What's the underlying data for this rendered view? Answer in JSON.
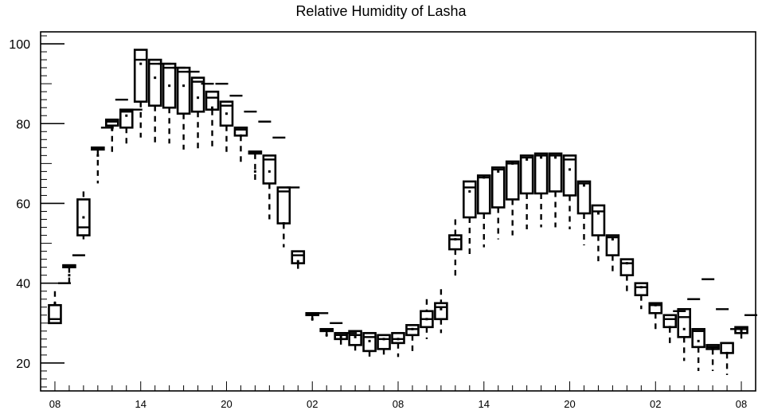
{
  "chart_data": {
    "type": "box",
    "title": "Relative Humidity of Lasha",
    "xlabel": "",
    "ylabel": "",
    "ylim": [
      13,
      103
    ],
    "yticks": [
      20,
      40,
      60,
      80,
      100
    ],
    "x_tick_labels": [
      "08",
      "14",
      "20",
      "02",
      "08",
      "14",
      "20",
      "02",
      "08"
    ],
    "x_tick_hours": [
      0,
      6,
      12,
      18,
      24,
      30,
      36,
      42,
      48
    ],
    "x_range_hours": [
      -1,
      49
    ],
    "grid": false,
    "boxes": [
      {
        "hour": 0,
        "min": null,
        "q1": 30,
        "median": 31,
        "q3": 34.5,
        "max": 38,
        "mean": 35,
        "extra": 40
      },
      {
        "hour": 1,
        "min": 39,
        "q1": 44,
        "median": 44.5,
        "q3": 44.5,
        "max": 44.5,
        "mean": 42,
        "extra": 47
      },
      {
        "hour": 2,
        "min": 51,
        "q1": 52,
        "median": 54,
        "q3": 61,
        "max": 63,
        "mean": 56.5,
        "extra": null
      },
      {
        "hour": 3,
        "min": 65,
        "q1": 73.5,
        "median": 74,
        "q3": 74,
        "max": 74,
        "mean": 72,
        "extra": 79
      },
      {
        "hour": 4,
        "min": 72,
        "q1": 79.5,
        "median": 80.5,
        "q3": 81,
        "max": 81,
        "mean": 78.5,
        "extra": 86
      },
      {
        "hour": 5,
        "min": 75,
        "q1": 79,
        "median": 83,
        "q3": 83.5,
        "max": 83.5,
        "mean": 82,
        "extra": 83.5
      },
      {
        "hour": 6,
        "min": 76.5,
        "q1": 85.5,
        "median": 96,
        "q3": 98.5,
        "max": 98.5,
        "mean": 95,
        "extra": null
      },
      {
        "hour": 7,
        "min": 75,
        "q1": 84.5,
        "median": 95,
        "q3": 96,
        "max": 96,
        "mean": 91.5,
        "extra": 95
      },
      {
        "hour": 8,
        "min": 75,
        "q1": 84,
        "median": 94,
        "q3": 95,
        "max": 95,
        "mean": 89.5,
        "extra": 94
      },
      {
        "hour": 9,
        "min": 73.5,
        "q1": 82.5,
        "median": 93,
        "q3": 94,
        "max": 94,
        "mean": 89.5,
        "extra": 93
      },
      {
        "hour": 10,
        "min": 73.5,
        "q1": 83,
        "median": 90.5,
        "q3": 91.5,
        "max": 91.5,
        "mean": 86.5,
        "extra": 90
      },
      {
        "hour": 11,
        "min": 73.5,
        "q1": 83.5,
        "median": 86.5,
        "q3": 88,
        "max": 88,
        "mean": 84,
        "extra": 90
      },
      {
        "hour": 12,
        "min": 72,
        "q1": 79.5,
        "median": 84.5,
        "q3": 85.5,
        "max": 85.5,
        "mean": 82.5,
        "extra": 87
      },
      {
        "hour": 13,
        "min": 70,
        "q1": 77,
        "median": 78.5,
        "q3": 79,
        "max": 79,
        "mean": 77,
        "extra": 83
      },
      {
        "hour": 14,
        "min": 65.5,
        "q1": 72.5,
        "median": 73,
        "q3": 73,
        "max": 73,
        "mean": 68,
        "extra": 80.5
      },
      {
        "hour": 15,
        "min": 56,
        "q1": 65,
        "median": 71,
        "q3": 72,
        "max": 72,
        "mean": 68,
        "extra": 76.5
      },
      {
        "hour": 16,
        "min": 49,
        "q1": 55,
        "median": 63,
        "q3": 64,
        "max": 64,
        "mean": 55,
        "extra": 64
      },
      {
        "hour": 17,
        "min": 42.5,
        "q1": 45,
        "median": 47,
        "q3": 48,
        "max": 48,
        "mean": 45.5,
        "extra": null
      },
      {
        "hour": 18,
        "min": 30,
        "q1": 32,
        "median": 32,
        "q3": 32.5,
        "max": 32.5,
        "mean": 31,
        "extra": 32.5
      },
      {
        "hour": 19,
        "min": 25.5,
        "q1": 28,
        "median": 28.5,
        "q3": 28.5,
        "max": 28.5,
        "mean": 27,
        "extra": 30
      },
      {
        "hour": 20,
        "min": 24,
        "q1": 26,
        "median": 27,
        "q3": 27.5,
        "max": 27.5,
        "mean": 26.5,
        "extra": 27.5
      },
      {
        "hour": 21,
        "min": 22,
        "q1": 24.5,
        "median": 27,
        "q3": 28,
        "max": 28,
        "mean": 26.5,
        "extra": null
      },
      {
        "hour": 22,
        "min": 20.5,
        "q1": 23,
        "median": 26.5,
        "q3": 27.5,
        "max": 27.5,
        "mean": 25.5,
        "extra": null
      },
      {
        "hour": 23,
        "min": 21,
        "q1": 23.5,
        "median": 26,
        "q3": 27,
        "max": 27,
        "mean": 26,
        "extra": null
      },
      {
        "hour": 24,
        "min": 21.5,
        "q1": 25,
        "median": 26,
        "q3": 27.5,
        "max": 27.5,
        "mean": 26,
        "extra": null
      },
      {
        "hour": 25,
        "min": 22.5,
        "q1": 27,
        "median": 28.5,
        "q3": 29.5,
        "max": 29.5,
        "mean": 28.5,
        "extra": null
      },
      {
        "hour": 26,
        "min": 26,
        "q1": 29,
        "median": 31,
        "q3": 33,
        "max": 36,
        "mean": 31,
        "extra": null
      },
      {
        "hour": 27,
        "min": 27.5,
        "q1": 31,
        "median": 34,
        "q3": 35,
        "max": 38.5,
        "mean": 33.5,
        "extra": null
      },
      {
        "hour": 28,
        "min": 41.5,
        "q1": 48.5,
        "median": 51,
        "q3": 52,
        "max": 56,
        "mean": 51,
        "extra": null
      },
      {
        "hour": 29,
        "min": 47,
        "q1": 56.5,
        "median": 64,
        "q3": 65.5,
        "max": 65.5,
        "mean": 63,
        "extra": null
      },
      {
        "hour": 30,
        "min": 49,
        "q1": 57.5,
        "median": 66.5,
        "q3": 67,
        "max": 67,
        "mean": 66.5,
        "extra": null
      },
      {
        "hour": 31,
        "min": 51,
        "q1": 59,
        "median": 68.5,
        "q3": 69,
        "max": 69,
        "mean": 68,
        "extra": null
      },
      {
        "hour": 32,
        "min": 52,
        "q1": 61,
        "median": 70,
        "q3": 70.5,
        "max": 70.5,
        "mean": 70,
        "extra": null
      },
      {
        "hour": 33,
        "min": 53.5,
        "q1": 62.5,
        "median": 71.5,
        "q3": 72,
        "max": 72,
        "mean": 71,
        "extra": null
      },
      {
        "hour": 34,
        "min": 54,
        "q1": 62.5,
        "median": 72,
        "q3": 72.5,
        "max": 72.5,
        "mean": 71.5,
        "extra": null
      },
      {
        "hour": 35,
        "min": 54,
        "q1": 63,
        "median": 72,
        "q3": 72.5,
        "max": 72.5,
        "mean": 71.5,
        "extra": null
      },
      {
        "hour": 36,
        "min": 53.5,
        "q1": 62,
        "median": 71,
        "q3": 72,
        "max": 72,
        "mean": 68.5,
        "extra": null
      },
      {
        "hour": 37,
        "min": 49.5,
        "q1": 57.5,
        "median": 65,
        "q3": 65.5,
        "max": 65.5,
        "mean": 64.5,
        "extra": null
      },
      {
        "hour": 38,
        "min": 45.5,
        "q1": 52,
        "median": 58,
        "q3": 59.5,
        "max": 59.5,
        "mean": 57.5,
        "extra": null
      },
      {
        "hour": 39,
        "min": 42.5,
        "q1": 47,
        "median": 51.5,
        "q3": 52,
        "max": 52,
        "mean": 51,
        "extra": null
      },
      {
        "hour": 40,
        "min": 38,
        "q1": 42,
        "median": 45,
        "q3": 46,
        "max": 46,
        "mean": 45,
        "extra": null
      },
      {
        "hour": 41,
        "min": 33.5,
        "q1": 37,
        "median": 39,
        "q3": 40,
        "max": 40,
        "mean": 39,
        "extra": null
      },
      {
        "hour": 42,
        "min": 28.5,
        "q1": 32.5,
        "median": 34.5,
        "q3": 35,
        "max": 35,
        "mean": 34.5,
        "extra": null
      },
      {
        "hour": 43,
        "min": 24,
        "q1": 29,
        "median": 31,
        "q3": 32,
        "max": 32,
        "mean": 29,
        "extra": 33
      },
      {
        "hour": 44,
        "min": 20.5,
        "q1": 26.5,
        "median": 31.5,
        "q3": 33.5,
        "max": 33.5,
        "mean": 28.5,
        "extra": 36
      },
      {
        "hour": 45,
        "min": 18,
        "q1": 24,
        "median": 28,
        "q3": 28.5,
        "max": 28.5,
        "mean": 25.5,
        "extra": 41
      },
      {
        "hour": 46,
        "min": 18,
        "q1": 23.5,
        "median": 24,
        "q3": 24.5,
        "max": 24.5,
        "mean": 23.5,
        "extra": 33.5
      },
      {
        "hour": 47,
        "min": 17,
        "q1": 22.5,
        "median": 25,
        "q3": 25,
        "max": 25,
        "mean": 22.5,
        "extra": 28.5
      },
      {
        "hour": 48,
        "min": 25,
        "q1": 27.5,
        "median": 28.5,
        "q3": 29,
        "max": 29,
        "mean": 28,
        "extra": 32
      }
    ]
  }
}
